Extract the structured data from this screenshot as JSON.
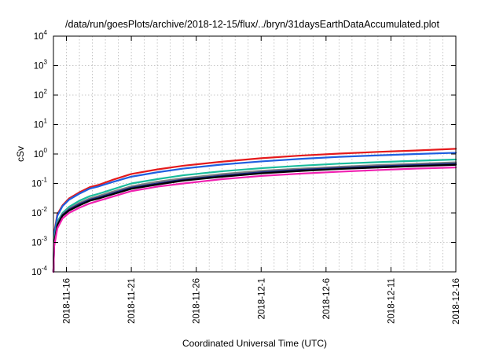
{
  "chart_data": {
    "type": "line",
    "title": "/data/run/goesPlots/archive/2018-12-15/flux/../bryn/31daysEarthDataAccumulated.plot",
    "xlabel": "Coordinated Universal Time (UTC)",
    "ylabel": "cSv",
    "yscale": "log",
    "ylim": [
      0.0001,
      10000
    ],
    "xlim": [
      0,
      31
    ],
    "x_start_date": "2018-11-15",
    "grid": true,
    "xticks": [
      {
        "x": 1,
        "label": "2018-11-16"
      },
      {
        "x": 6,
        "label": "2018-11-21"
      },
      {
        "x": 11,
        "label": "2018-11-26"
      },
      {
        "x": 16,
        "label": "2018-12-1"
      },
      {
        "x": 21,
        "label": "2018-12-6"
      },
      {
        "x": 26,
        "label": "2018-12-11"
      },
      {
        "x": 31,
        "label": "2018-12-16"
      }
    ],
    "yticks": [
      {
        "y": 0.0001,
        "base": "10",
        "exp": "-4"
      },
      {
        "y": 0.001,
        "base": "10",
        "exp": "-3"
      },
      {
        "y": 0.01,
        "base": "10",
        "exp": "-2"
      },
      {
        "y": 0.1,
        "base": "10",
        "exp": "-1"
      },
      {
        "y": 1,
        "base": "10",
        "exp": "0"
      },
      {
        "y": 10,
        "base": "10",
        "exp": "1"
      },
      {
        "y": 100,
        "base": "10",
        "exp": "2"
      },
      {
        "y": 1000,
        "base": "10",
        "exp": "3"
      },
      {
        "y": 10000,
        "base": "10",
        "exp": "4"
      }
    ],
    "series": [
      {
        "color": "#e41a1c",
        "x": [
          0,
          0.05,
          0.3,
          0.7,
          1.2,
          2,
          2.8,
          3.5,
          4.5,
          6,
          8,
          10,
          13,
          16,
          19,
          22,
          25,
          28,
          31
        ],
        "y": [
          0.0001,
          0.002,
          0.009,
          0.018,
          0.031,
          0.05,
          0.075,
          0.09,
          0.13,
          0.21,
          0.3,
          0.4,
          0.55,
          0.72,
          0.88,
          1.03,
          1.18,
          1.32,
          1.5
        ]
      },
      {
        "color": "#1f5fe0",
        "x": [
          0,
          0.05,
          0.3,
          0.7,
          1.2,
          2,
          2.8,
          3.5,
          4.5,
          6,
          8,
          10,
          13,
          16,
          19,
          22,
          25,
          28,
          31
        ],
        "y": [
          0.0001,
          0.0018,
          0.008,
          0.017,
          0.028,
          0.045,
          0.067,
          0.08,
          0.11,
          0.17,
          0.24,
          0.32,
          0.44,
          0.56,
          0.68,
          0.8,
          0.9,
          1.0,
          1.1
        ]
      },
      {
        "color": "#1abc9c",
        "x": [
          0,
          0.05,
          0.3,
          0.7,
          1.2,
          2,
          2.8,
          3.5,
          4.5,
          6,
          8,
          10,
          13,
          16,
          19,
          22,
          25,
          28,
          31
        ],
        "y": [
          0.0001,
          0.0012,
          0.005,
          0.01,
          0.016,
          0.026,
          0.037,
          0.045,
          0.062,
          0.1,
          0.14,
          0.19,
          0.26,
          0.33,
          0.4,
          0.47,
          0.53,
          0.59,
          0.65
        ]
      },
      {
        "color": "#808080",
        "x": [
          0,
          0.05,
          0.3,
          0.7,
          1.2,
          2,
          2.8,
          3.5,
          4.5,
          6,
          8,
          10,
          13,
          16,
          19,
          22,
          25,
          28,
          31
        ],
        "y": [
          0.0001,
          0.001,
          0.0045,
          0.009,
          0.014,
          0.022,
          0.031,
          0.038,
          0.052,
          0.08,
          0.115,
          0.15,
          0.21,
          0.27,
          0.32,
          0.37,
          0.42,
          0.47,
          0.52
        ]
      },
      {
        "color": "#1a2a80",
        "x": [
          0,
          0.05,
          0.3,
          0.7,
          1.2,
          2,
          2.8,
          3.5,
          4.5,
          6,
          8,
          10,
          13,
          16,
          19,
          22,
          25,
          28,
          31
        ],
        "y": [
          0.0001,
          0.0009,
          0.004,
          0.0085,
          0.013,
          0.02,
          0.028,
          0.034,
          0.046,
          0.072,
          0.1,
          0.135,
          0.185,
          0.24,
          0.29,
          0.335,
          0.38,
          0.425,
          0.47
        ]
      },
      {
        "color": "#000000",
        "x": [
          0,
          0.05,
          0.3,
          0.7,
          1.2,
          2,
          2.8,
          3.5,
          4.5,
          6,
          8,
          10,
          13,
          16,
          19,
          22,
          25,
          28,
          31
        ],
        "y": [
          0.0001,
          0.00085,
          0.0037,
          0.008,
          0.012,
          0.018,
          0.026,
          0.031,
          0.042,
          0.066,
          0.092,
          0.125,
          0.17,
          0.22,
          0.265,
          0.31,
          0.35,
          0.39,
          0.43
        ]
      },
      {
        "color": "#f020b0",
        "x": [
          0,
          0.05,
          0.3,
          0.7,
          1.2,
          2,
          2.8,
          3.5,
          4.5,
          6,
          8,
          10,
          13,
          16,
          19,
          22,
          25,
          28,
          31
        ],
        "y": [
          0.0001,
          0.0007,
          0.003,
          0.0065,
          0.01,
          0.015,
          0.021,
          0.026,
          0.035,
          0.055,
          0.078,
          0.1,
          0.14,
          0.18,
          0.215,
          0.25,
          0.285,
          0.32,
          0.35
        ]
      }
    ]
  }
}
